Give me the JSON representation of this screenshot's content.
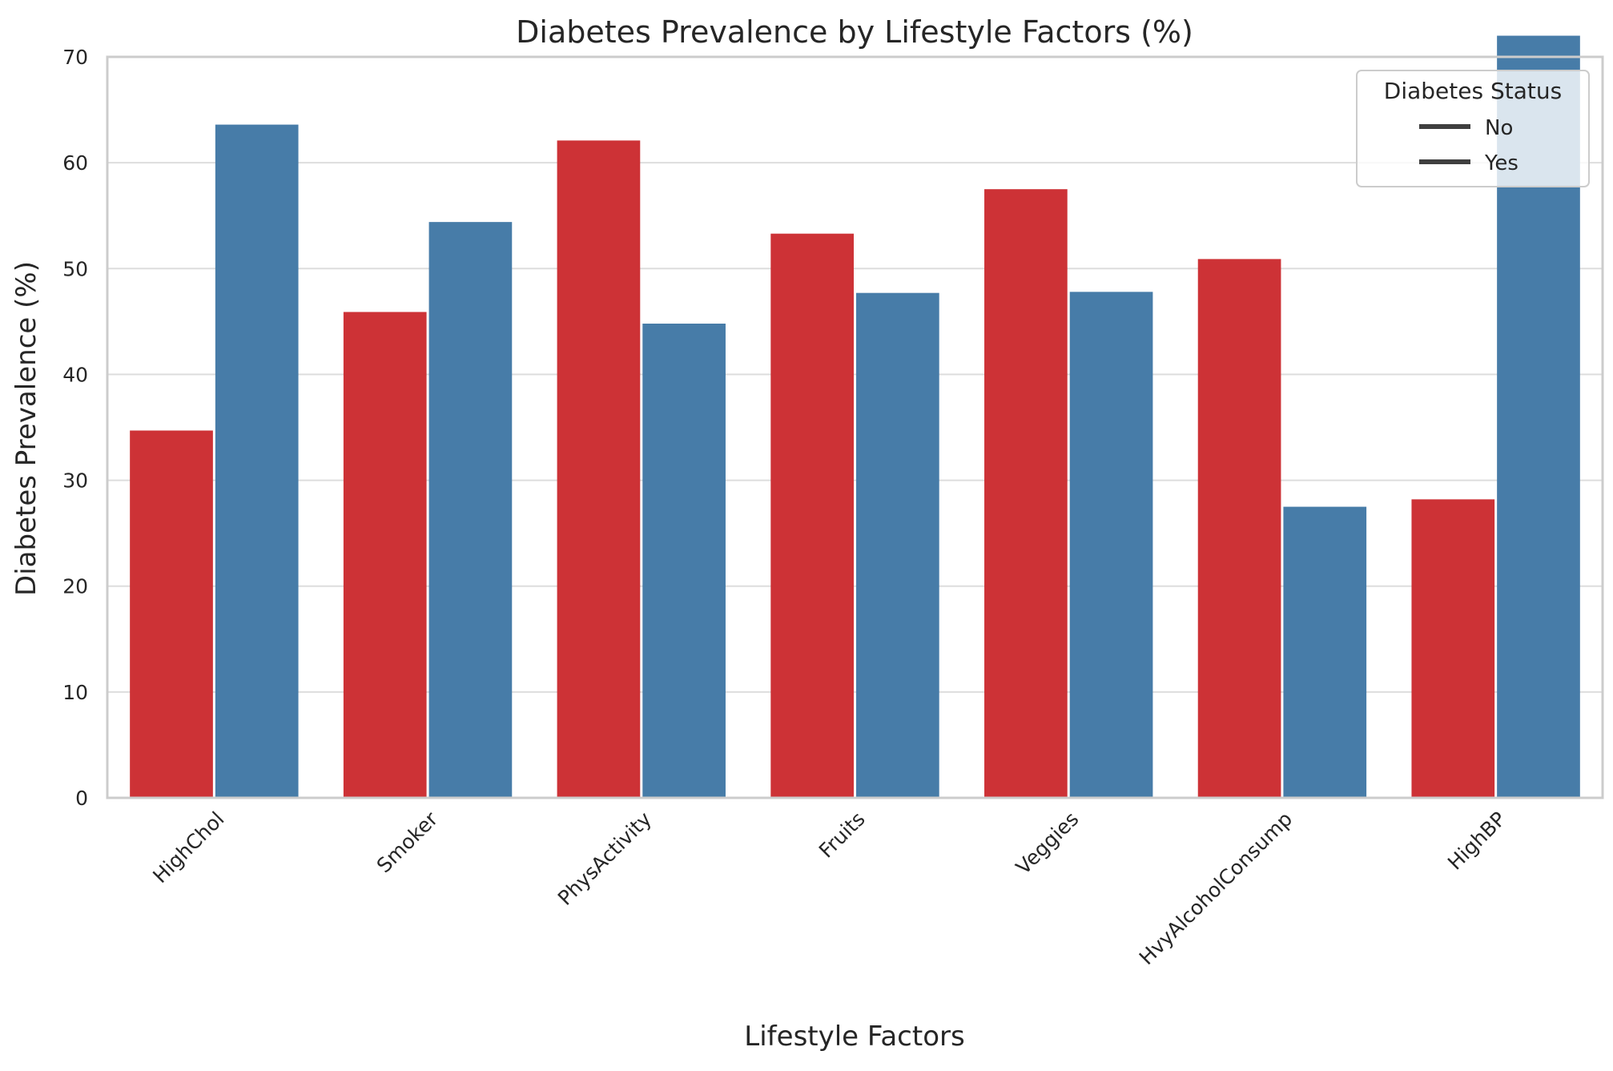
{
  "chart_data": {
    "type": "bar",
    "title": "Diabetes Prevalence by Lifestyle Factors (%)",
    "xlabel": "Lifestyle Factors",
    "ylabel": "Diabetes Prevalence (%)",
    "ylim": [
      0,
      70
    ],
    "yticks": [
      "0",
      "10",
      "20",
      "30",
      "40",
      "50",
      "60",
      "70"
    ],
    "grid": "horizontal",
    "categories": [
      "HighChol",
      "Smoker",
      "PhysActivity",
      "Fruits",
      "Veggies",
      "HvyAlcoholConsump",
      "HighBP"
    ],
    "series": [
      {
        "name": "No",
        "color": "#cd3236",
        "values": [
          34.7,
          45.9,
          62.1,
          53.3,
          57.5,
          50.9,
          28.2
        ]
      },
      {
        "name": "Yes",
        "color": "#477ca8",
        "values": [
          63.6,
          54.4,
          44.8,
          47.7,
          47.8,
          27.5,
          72.0
        ]
      }
    ],
    "legend": {
      "title": "Diabetes Status",
      "entries": [
        "No",
        "Yes"
      ],
      "placement": "top-right",
      "marker_color": "#3f3f3f"
    }
  }
}
